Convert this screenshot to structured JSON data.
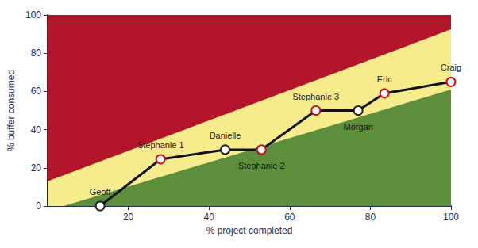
{
  "chart_data": {
    "type": "line",
    "x_label": "% project completed",
    "y_label": "% buffer consumed",
    "xlim": [
      0,
      100
    ],
    "ylim": [
      0,
      100
    ],
    "xticks": [
      20,
      40,
      60,
      80,
      100
    ],
    "yticks": [
      0,
      20,
      40,
      60,
      80,
      100
    ],
    "grid": false,
    "bands": [
      {
        "color": "#b3152b",
        "x": [
          0,
          100
        ],
        "values": [
          100,
          100
        ]
      },
      {
        "color": "#f7ec8c",
        "x": [
          0,
          100
        ],
        "values": [
          13,
          92.5
        ]
      },
      {
        "color": "#5c8e3c",
        "x": [
          4,
          100
        ],
        "values": [
          0,
          61
        ]
      }
    ],
    "labels": [
      "Geoff",
      "Stephanie 1",
      "Danielle",
      "Stephanie 2",
      "Stephanie 3",
      "Morgan",
      "Eric",
      "Craig"
    ],
    "x": [
      13,
      28,
      44,
      53,
      66.5,
      77,
      83.5,
      100
    ],
    "values": [
      0,
      24.5,
      29.5,
      29.5,
      50,
      50,
      59,
      65
    ],
    "colors": [
      "#222222",
      "#d0101e",
      "#222222",
      "#d0101e",
      "#d0101e",
      "#222222",
      "#d0101e",
      "#d0101e"
    ],
    "color": "#111111",
    "marker": "circle"
  }
}
